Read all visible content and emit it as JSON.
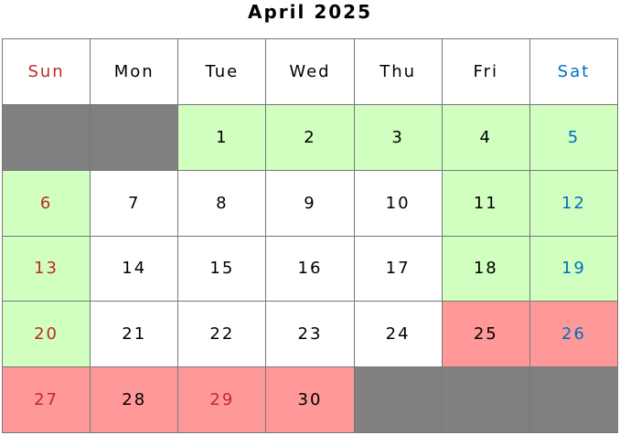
{
  "title": "April 2025",
  "colors": {
    "green": "#d0ffc0",
    "red": "#ff9999",
    "gray": "#808080",
    "white": "#ffffff",
    "sunday_text": "#c0282d",
    "saturday_text": "#0070c0",
    "default_text": "#000000"
  },
  "headers": [
    {
      "label": "Sun",
      "text": "sunday_text"
    },
    {
      "label": "Mon",
      "text": "default_text"
    },
    {
      "label": "Tue",
      "text": "default_text"
    },
    {
      "label": "Wed",
      "text": "default_text"
    },
    {
      "label": "Thu",
      "text": "default_text"
    },
    {
      "label": "Fri",
      "text": "default_text"
    },
    {
      "label": "Sat",
      "text": "saturday_text"
    }
  ],
  "weeks": [
    [
      {
        "day": "",
        "bg": "gray"
      },
      {
        "day": "",
        "bg": "gray"
      },
      {
        "day": "1",
        "bg": "green"
      },
      {
        "day": "2",
        "bg": "green"
      },
      {
        "day": "3",
        "bg": "green"
      },
      {
        "day": "4",
        "bg": "green"
      },
      {
        "day": "5",
        "bg": "green",
        "text": "saturday_text"
      }
    ],
    [
      {
        "day": "6",
        "bg": "green",
        "text": "sunday_text"
      },
      {
        "day": "7",
        "bg": "white"
      },
      {
        "day": "8",
        "bg": "white"
      },
      {
        "day": "9",
        "bg": "white"
      },
      {
        "day": "10",
        "bg": "white"
      },
      {
        "day": "11",
        "bg": "green"
      },
      {
        "day": "12",
        "bg": "green",
        "text": "saturday_text"
      }
    ],
    [
      {
        "day": "13",
        "bg": "green",
        "text": "sunday_text"
      },
      {
        "day": "14",
        "bg": "white"
      },
      {
        "day": "15",
        "bg": "white"
      },
      {
        "day": "16",
        "bg": "white"
      },
      {
        "day": "17",
        "bg": "white"
      },
      {
        "day": "18",
        "bg": "green"
      },
      {
        "day": "19",
        "bg": "green",
        "text": "saturday_text"
      }
    ],
    [
      {
        "day": "20",
        "bg": "green",
        "text": "sunday_text"
      },
      {
        "day": "21",
        "bg": "white"
      },
      {
        "day": "22",
        "bg": "white"
      },
      {
        "day": "23",
        "bg": "white"
      },
      {
        "day": "24",
        "bg": "white"
      },
      {
        "day": "25",
        "bg": "red"
      },
      {
        "day": "26",
        "bg": "red",
        "text": "saturday_text"
      }
    ],
    [
      {
        "day": "27",
        "bg": "red",
        "text": "sunday_text"
      },
      {
        "day": "28",
        "bg": "red"
      },
      {
        "day": "29",
        "bg": "red",
        "text": "sunday_text"
      },
      {
        "day": "30",
        "bg": "red"
      },
      {
        "day": "",
        "bg": "gray"
      },
      {
        "day": "",
        "bg": "gray"
      },
      {
        "day": "",
        "bg": "gray"
      }
    ]
  ]
}
